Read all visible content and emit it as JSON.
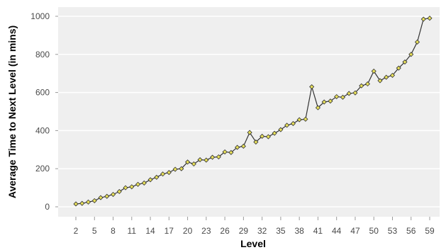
{
  "chart_data": {
    "type": "line",
    "title": "",
    "xlabel": "Level",
    "ylabel": "Average Time to Next Level (in mins)",
    "x_tick_labels": [
      "2",
      "5",
      "8",
      "11",
      "14",
      "17",
      "20",
      "23",
      "26",
      "29",
      "32",
      "35",
      "38",
      "41",
      "44",
      "47",
      "50",
      "53",
      "56",
      "59"
    ],
    "x_tick_levels": [
      2,
      5,
      8,
      11,
      14,
      17,
      20,
      23,
      26,
      29,
      32,
      35,
      38,
      41,
      44,
      47,
      50,
      53,
      56,
      59
    ],
    "y_ticks": [
      0,
      200,
      400,
      600,
      800,
      1000
    ],
    "ylim": [
      -40,
      1050
    ],
    "xlim": [
      2,
      59
    ],
    "grid": "horizontal",
    "legend": "none",
    "colors": {
      "plot_background": "#efefef",
      "gridline": "#ffffff",
      "line": "#333333",
      "marker_fill": "#e8e05a",
      "marker_stroke": "#333333"
    },
    "series": [
      {
        "x": [
          2,
          3,
          4,
          5,
          6,
          7,
          8,
          9,
          10,
          11,
          12,
          13,
          14,
          15,
          16,
          17,
          18,
          19,
          20,
          21,
          22,
          23,
          24,
          25,
          26,
          27,
          28,
          29,
          30,
          31,
          32,
          33,
          34,
          35,
          36,
          37,
          38,
          39,
          40,
          41,
          42,
          43,
          44,
          45,
          46,
          47,
          48,
          49,
          50,
          51,
          52,
          53,
          54,
          55,
          56,
          57,
          58,
          59
        ],
        "values": [
          15,
          18,
          25,
          32,
          48,
          55,
          65,
          80,
          100,
          105,
          118,
          125,
          142,
          155,
          172,
          180,
          197,
          200,
          235,
          225,
          247,
          245,
          260,
          262,
          288,
          285,
          312,
          318,
          390,
          340,
          370,
          368,
          386,
          405,
          428,
          437,
          457,
          460,
          630,
          520,
          550,
          555,
          578,
          575,
          595,
          598,
          635,
          645,
          712,
          662,
          680,
          690,
          728,
          760,
          800,
          865,
          985,
          990
        ]
      }
    ]
  }
}
